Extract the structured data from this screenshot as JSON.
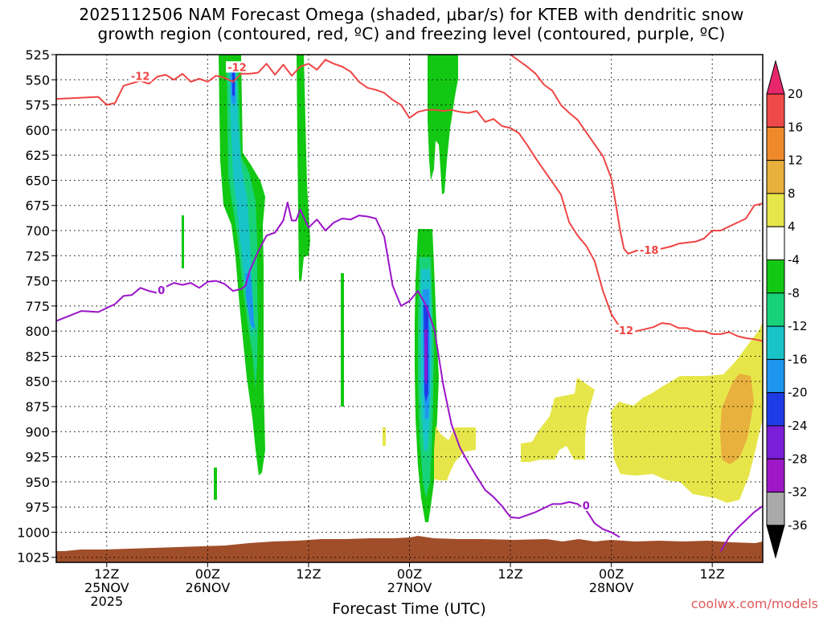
{
  "chart_data": {
    "type": "time-height cross section",
    "title_line1": "2025112506 NAM Forecast Omega (shaded, μbar/s) for KTEB with dendritic snow",
    "title_line2": "growth region (contoured, red, ºC) and freezing level (contoured, purple, ºC)",
    "xlabel": "Forecast Time (UTC)",
    "ylabel": "",
    "credit": "coolwx.com/models",
    "y_ticks": [
      525,
      550,
      575,
      600,
      625,
      650,
      675,
      700,
      725,
      750,
      775,
      800,
      825,
      850,
      875,
      900,
      925,
      950,
      975,
      1000,
      1025
    ],
    "x_ticks": [
      {
        "hour": 6,
        "line1": "12Z",
        "line2": "25NOV",
        "line3": "2025"
      },
      {
        "hour": 18,
        "line1": "00Z",
        "line2": "26NOV",
        "line3": ""
      },
      {
        "hour": 30,
        "line1": "12Z",
        "line2": "",
        "line3": ""
      },
      {
        "hour": 42,
        "line1": "00Z",
        "line2": "27NOV",
        "line3": ""
      },
      {
        "hour": 54,
        "line1": "12Z",
        "line2": "",
        "line3": ""
      },
      {
        "hour": 66,
        "line1": "00Z",
        "line2": "28NOV",
        "line3": ""
      },
      {
        "hour": 78,
        "line1": "12Z",
        "line2": "",
        "line3": ""
      }
    ],
    "x_range_hours": [
      0,
      84
    ],
    "y_range_hpa": [
      525,
      1030
    ],
    "colorbar": {
      "labels": [
        "20",
        "16",
        "12",
        "8",
        "4",
        "-4",
        "-8",
        "-12",
        "-16",
        "-20",
        "-24",
        "-28",
        "-32",
        "-36"
      ],
      "colors": [
        "#e7266b",
        "#ef4a4a",
        "#ef8a2c",
        "#e8b03c",
        "#e6e64a",
        "#ffffff",
        "#12c812",
        "#18d27a",
        "#18c4c8",
        "#1e96f0",
        "#1e3ce6",
        "#7a1ed8",
        "#9e18c8",
        "#a9a9a9",
        "#000000"
      ]
    },
    "contour_labels": {
      "dgz_upper": "-12",
      "dgz_upper_2": "-12",
      "dgz_lower_1": "-18",
      "dgz_lower_2": "-12",
      "freezing": "0",
      "freezing_2": "0"
    },
    "dgz_upper_line": [
      [
        0,
        569
      ],
      [
        5,
        567
      ],
      [
        6,
        575
      ],
      [
        7,
        573
      ],
      [
        8,
        556
      ],
      [
        10,
        551
      ],
      [
        11,
        554
      ],
      [
        12,
        547
      ],
      [
        13,
        545
      ],
      [
        14,
        550
      ],
      [
        15,
        544
      ],
      [
        16,
        552
      ],
      [
        17,
        549
      ],
      [
        18,
        552
      ],
      [
        19,
        546
      ],
      [
        20,
        548
      ],
      [
        21,
        552
      ],
      [
        22,
        544
      ],
      [
        23,
        544
      ],
      [
        24,
        543
      ],
      [
        25,
        534
      ],
      [
        26,
        545
      ],
      [
        27,
        535
      ],
      [
        28,
        546
      ],
      [
        29,
        537
      ],
      [
        30,
        534
      ],
      [
        31,
        540
      ],
      [
        32,
        530
      ],
      [
        33,
        534
      ],
      [
        34,
        537
      ],
      [
        35,
        542
      ],
      [
        36,
        552
      ],
      [
        37,
        558
      ],
      [
        38,
        560
      ],
      [
        39,
        563
      ],
      [
        40,
        570
      ],
      [
        41,
        575
      ],
      [
        42,
        588
      ],
      [
        43,
        582
      ],
      [
        44,
        580
      ],
      [
        45,
        580
      ],
      [
        46,
        581
      ],
      [
        47,
        580
      ],
      [
        48,
        582
      ],
      [
        49,
        583
      ],
      [
        50,
        581
      ],
      [
        51,
        592
      ],
      [
        52,
        589
      ],
      [
        53,
        596
      ],
      [
        54,
        598
      ],
      [
        55,
        603
      ],
      [
        56,
        615
      ],
      [
        57,
        628
      ],
      [
        58,
        640
      ],
      [
        59,
        652
      ],
      [
        60,
        664
      ],
      [
        61,
        692
      ],
      [
        62,
        705
      ],
      [
        63,
        715
      ],
      [
        64,
        730
      ],
      [
        65,
        760
      ],
      [
        66,
        783
      ],
      [
        67,
        796
      ],
      [
        68,
        800
      ],
      [
        69,
        800
      ],
      [
        70,
        798
      ],
      [
        71,
        796
      ],
      [
        72,
        792
      ],
      [
        73,
        793
      ],
      [
        74,
        797
      ],
      [
        75,
        797
      ],
      [
        76,
        800
      ],
      [
        77,
        800
      ],
      [
        78,
        803
      ],
      [
        79,
        803
      ],
      [
        80,
        801
      ],
      [
        81,
        805
      ],
      [
        82,
        807
      ],
      [
        83,
        808
      ],
      [
        84,
        810
      ]
    ],
    "dgz_upper_right": [
      [
        54,
        525
      ],
      [
        55,
        531
      ],
      [
        56,
        537
      ],
      [
        57,
        544
      ],
      [
        58,
        555
      ],
      [
        59,
        561
      ],
      [
        60,
        575
      ],
      [
        61,
        583
      ],
      [
        62,
        590
      ],
      [
        63,
        602
      ],
      [
        64,
        614
      ],
      [
        65,
        626
      ],
      [
        66,
        648
      ],
      [
        66.5,
        672
      ],
      [
        67,
        698
      ],
      [
        67.5,
        718
      ],
      [
        68,
        723
      ],
      [
        69,
        720
      ],
      [
        70,
        720
      ],
      [
        71,
        719
      ],
      [
        72,
        718
      ],
      [
        73,
        716
      ],
      [
        74,
        713
      ],
      [
        75,
        712
      ],
      [
        76,
        711
      ],
      [
        77,
        708
      ],
      [
        78,
        700
      ],
      [
        79,
        700
      ],
      [
        80,
        696
      ],
      [
        81,
        692
      ],
      [
        82,
        688
      ],
      [
        83,
        675
      ],
      [
        84,
        673
      ]
    ],
    "freezing_line": [
      [
        0,
        790
      ],
      [
        3,
        780
      ],
      [
        5,
        781
      ],
      [
        6,
        777
      ],
      [
        7,
        773
      ],
      [
        8,
        765
      ],
      [
        9,
        764
      ],
      [
        10,
        757
      ],
      [
        11,
        760
      ],
      [
        12,
        762
      ],
      [
        13,
        756
      ],
      [
        14,
        752
      ],
      [
        15,
        754
      ],
      [
        16,
        752
      ],
      [
        17,
        757
      ],
      [
        18,
        751
      ],
      [
        19,
        750
      ],
      [
        20,
        753
      ],
      [
        21,
        760
      ],
      [
        22,
        758
      ],
      [
        22.5,
        755
      ],
      [
        23,
        740
      ],
      [
        24,
        721
      ],
      [
        25,
        705
      ],
      [
        26,
        702
      ],
      [
        27,
        690
      ],
      [
        27.5,
        672
      ],
      [
        28,
        690
      ],
      [
        28.5,
        690
      ],
      [
        29,
        679
      ],
      [
        30,
        697
      ],
      [
        31,
        689
      ],
      [
        32,
        700
      ],
      [
        33,
        692
      ],
      [
        34,
        688
      ],
      [
        35,
        689
      ],
      [
        36,
        685
      ],
      [
        37,
        686
      ],
      [
        38,
        688
      ],
      [
        39,
        706
      ],
      [
        40,
        755
      ],
      [
        40.5,
        765
      ],
      [
        41,
        775
      ],
      [
        42,
        770
      ],
      [
        43,
        760
      ],
      [
        44,
        775
      ],
      [
        45,
        800
      ],
      [
        46,
        853
      ],
      [
        47,
        893
      ],
      [
        48,
        916
      ],
      [
        49,
        931
      ],
      [
        50,
        945
      ],
      [
        51,
        958
      ],
      [
        52,
        965
      ],
      [
        53,
        974
      ],
      [
        54,
        985
      ],
      [
        55,
        986
      ],
      [
        56,
        983
      ],
      [
        57,
        980
      ],
      [
        58,
        976
      ],
      [
        59,
        972
      ],
      [
        60,
        972
      ],
      [
        61,
        970
      ],
      [
        62,
        972
      ],
      [
        63,
        978
      ],
      [
        64,
        991
      ],
      [
        65,
        997
      ],
      [
        66,
        1000
      ],
      [
        67,
        1005
      ]
    ],
    "freezing_line_right": [
      [
        79,
        1019
      ],
      [
        80,
        1005
      ],
      [
        81,
        996
      ],
      [
        82,
        988
      ],
      [
        83,
        980
      ],
      [
        84,
        974
      ]
    ]
  }
}
